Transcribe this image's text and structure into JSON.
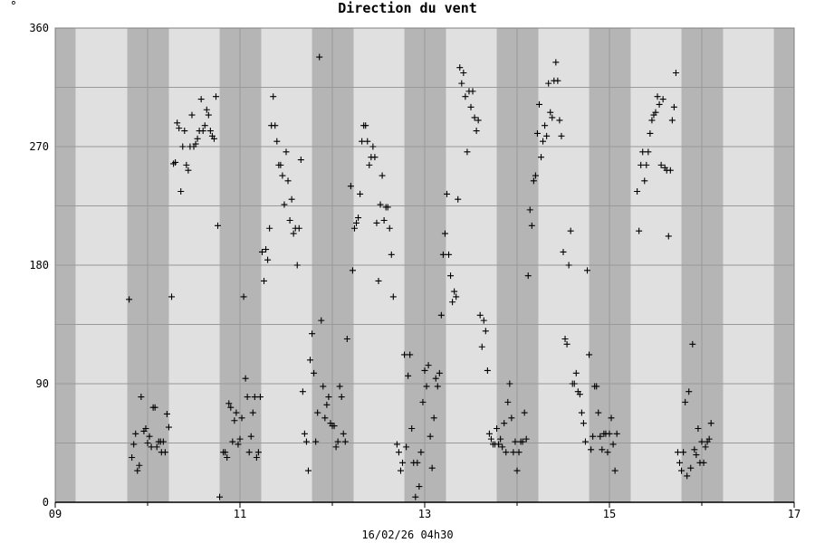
{
  "header": {
    "corner_mark": "°"
  },
  "chart_data": {
    "type": "scatter",
    "title": "Direction du vent",
    "footer": "16/02/26 04h30",
    "marker": "+",
    "xlabel": "",
    "ylabel": "",
    "xlim": [
      9.0,
      17.0
    ],
    "ylim": [
      0,
      360
    ],
    "x_ticks": [
      9,
      11,
      13,
      15,
      17
    ],
    "x_tick_labels": [
      "09",
      "11",
      "13",
      "15",
      "17"
    ],
    "x_minor_ticks": [
      10,
      12,
      14,
      16
    ],
    "y_ticks": [
      0,
      90,
      180,
      270,
      360
    ],
    "y_tick_labels": [
      "0",
      "90",
      "180",
      "270",
      "360"
    ],
    "y_gridlines": [
      0,
      45,
      90,
      135,
      180,
      225,
      270,
      315,
      360
    ],
    "grid": true,
    "colors": {
      "background": "#e0e0e0",
      "night_band": "#b5b5b5",
      "grid": "#999999",
      "marker": "#000000"
    },
    "night_bands": [
      [
        9.0,
        9.22
      ],
      [
        9.78,
        10.23
      ],
      [
        10.78,
        11.23
      ],
      [
        11.78,
        12.23
      ],
      [
        12.78,
        13.23
      ],
      [
        13.78,
        14.23
      ],
      [
        14.78,
        15.23
      ],
      [
        15.78,
        16.23
      ],
      [
        16.78,
        17.0
      ]
    ],
    "points": [
      [
        9.8,
        154
      ],
      [
        9.83,
        34
      ],
      [
        9.85,
        44
      ],
      [
        9.87,
        52
      ],
      [
        9.89,
        24
      ],
      [
        9.91,
        28
      ],
      [
        9.93,
        80
      ],
      [
        9.96,
        54
      ],
      [
        9.98,
        56
      ],
      [
        10.0,
        45
      ],
      [
        10.02,
        50
      ],
      [
        10.04,
        42
      ],
      [
        10.06,
        72
      ],
      [
        10.08,
        72
      ],
      [
        10.1,
        42
      ],
      [
        10.12,
        46
      ],
      [
        10.14,
        46
      ],
      [
        10.15,
        38
      ],
      [
        10.17,
        46
      ],
      [
        10.19,
        38
      ],
      [
        10.21,
        67
      ],
      [
        10.23,
        57
      ],
      [
        10.26,
        156
      ],
      [
        10.28,
        257
      ],
      [
        10.3,
        258
      ],
      [
        10.32,
        288
      ],
      [
        10.34,
        284
      ],
      [
        10.36,
        236
      ],
      [
        10.38,
        270
      ],
      [
        10.4,
        282
      ],
      [
        10.42,
        256
      ],
      [
        10.44,
        252
      ],
      [
        10.46,
        270
      ],
      [
        10.48,
        294
      ],
      [
        10.5,
        270
      ],
      [
        10.52,
        272
      ],
      [
        10.54,
        276
      ],
      [
        10.56,
        282
      ],
      [
        10.58,
        306
      ],
      [
        10.6,
        282
      ],
      [
        10.62,
        286
      ],
      [
        10.64,
        298
      ],
      [
        10.66,
        294
      ],
      [
        10.68,
        282
      ],
      [
        10.7,
        278
      ],
      [
        10.72,
        276
      ],
      [
        10.74,
        308
      ],
      [
        10.76,
        210
      ],
      [
        10.78,
        4
      ],
      [
        10.82,
        38
      ],
      [
        10.84,
        38
      ],
      [
        10.86,
        34
      ],
      [
        10.88,
        75
      ],
      [
        10.9,
        72
      ],
      [
        10.92,
        46
      ],
      [
        10.94,
        62
      ],
      [
        10.96,
        68
      ],
      [
        10.98,
        44
      ],
      [
        11.0,
        48
      ],
      [
        11.02,
        64
      ],
      [
        11.04,
        156
      ],
      [
        11.06,
        94
      ],
      [
        11.08,
        80
      ],
      [
        11.1,
        38
      ],
      [
        11.12,
        50
      ],
      [
        11.14,
        68
      ],
      [
        11.16,
        80
      ],
      [
        11.18,
        34
      ],
      [
        11.2,
        38
      ],
      [
        11.22,
        80
      ],
      [
        11.24,
        190
      ],
      [
        11.26,
        168
      ],
      [
        11.28,
        192
      ],
      [
        11.3,
        184
      ],
      [
        11.32,
        208
      ],
      [
        11.34,
        286
      ],
      [
        11.36,
        308
      ],
      [
        11.38,
        286
      ],
      [
        11.4,
        274
      ],
      [
        11.42,
        256
      ],
      [
        11.44,
        256
      ],
      [
        11.46,
        248
      ],
      [
        11.48,
        226
      ],
      [
        11.5,
        266
      ],
      [
        11.52,
        244
      ],
      [
        11.54,
        214
      ],
      [
        11.56,
        230
      ],
      [
        11.58,
        204
      ],
      [
        11.6,
        208
      ],
      [
        11.62,
        180
      ],
      [
        11.64,
        208
      ],
      [
        11.66,
        260
      ],
      [
        11.68,
        84
      ],
      [
        11.7,
        52
      ],
      [
        11.72,
        46
      ],
      [
        11.74,
        24
      ],
      [
        11.76,
        108
      ],
      [
        11.78,
        128
      ],
      [
        11.8,
        98
      ],
      [
        11.82,
        46
      ],
      [
        11.84,
        68
      ],
      [
        11.86,
        338
      ],
      [
        11.88,
        138
      ],
      [
        11.9,
        88
      ],
      [
        11.92,
        64
      ],
      [
        11.94,
        74
      ],
      [
        11.96,
        80
      ],
      [
        11.98,
        60
      ],
      [
        12.0,
        58
      ],
      [
        12.02,
        58
      ],
      [
        12.04,
        42
      ],
      [
        12.06,
        46
      ],
      [
        12.08,
        88
      ],
      [
        12.1,
        80
      ],
      [
        12.12,
        52
      ],
      [
        12.14,
        46
      ],
      [
        12.16,
        124
      ],
      [
        12.2,
        240
      ],
      [
        12.22,
        176
      ],
      [
        12.24,
        208
      ],
      [
        12.26,
        212
      ],
      [
        12.28,
        216
      ],
      [
        12.3,
        234
      ],
      [
        12.32,
        274
      ],
      [
        12.34,
        286
      ],
      [
        12.36,
        286
      ],
      [
        12.38,
        274
      ],
      [
        12.4,
        256
      ],
      [
        12.42,
        262
      ],
      [
        12.44,
        270
      ],
      [
        12.46,
        262
      ],
      [
        12.48,
        212
      ],
      [
        12.5,
        168
      ],
      [
        12.52,
        226
      ],
      [
        12.54,
        248
      ],
      [
        12.56,
        214
      ],
      [
        12.58,
        224
      ],
      [
        12.6,
        224
      ],
      [
        12.62,
        208
      ],
      [
        12.64,
        188
      ],
      [
        12.66,
        156
      ],
      [
        12.7,
        44
      ],
      [
        12.72,
        38
      ],
      [
        12.74,
        24
      ],
      [
        12.76,
        30
      ],
      [
        12.78,
        112
      ],
      [
        12.8,
        42
      ],
      [
        12.82,
        96
      ],
      [
        12.84,
        112
      ],
      [
        12.86,
        56
      ],
      [
        12.88,
        30
      ],
      [
        12.9,
        4
      ],
      [
        12.92,
        30
      ],
      [
        12.94,
        12
      ],
      [
        12.96,
        38
      ],
      [
        12.98,
        76
      ],
      [
        13.0,
        100
      ],
      [
        13.02,
        88
      ],
      [
        13.04,
        104
      ],
      [
        13.06,
        50
      ],
      [
        13.08,
        26
      ],
      [
        13.1,
        64
      ],
      [
        13.12,
        94
      ],
      [
        13.14,
        88
      ],
      [
        13.16,
        98
      ],
      [
        13.18,
        142
      ],
      [
        13.2,
        188
      ],
      [
        13.22,
        204
      ],
      [
        13.24,
        234
      ],
      [
        13.26,
        188
      ],
      [
        13.28,
        172
      ],
      [
        13.3,
        152
      ],
      [
        13.32,
        160
      ],
      [
        13.34,
        156
      ],
      [
        13.36,
        230
      ],
      [
        13.38,
        330
      ],
      [
        13.4,
        318
      ],
      [
        13.42,
        326
      ],
      [
        13.44,
        308
      ],
      [
        13.46,
        266
      ],
      [
        13.48,
        312
      ],
      [
        13.5,
        300
      ],
      [
        13.52,
        312
      ],
      [
        13.54,
        292
      ],
      [
        13.56,
        282
      ],
      [
        13.58,
        290
      ],
      [
        13.6,
        142
      ],
      [
        13.62,
        118
      ],
      [
        13.64,
        138
      ],
      [
        13.66,
        130
      ],
      [
        13.68,
        100
      ],
      [
        13.7,
        52
      ],
      [
        13.72,
        48
      ],
      [
        13.74,
        44
      ],
      [
        13.76,
        44
      ],
      [
        13.78,
        56
      ],
      [
        13.8,
        44
      ],
      [
        13.82,
        48
      ],
      [
        13.84,
        42
      ],
      [
        13.86,
        60
      ],
      [
        13.88,
        38
      ],
      [
        13.9,
        76
      ],
      [
        13.92,
        90
      ],
      [
        13.94,
        64
      ],
      [
        13.96,
        38
      ],
      [
        13.98,
        46
      ],
      [
        14.0,
        24
      ],
      [
        14.02,
        38
      ],
      [
        14.04,
        46
      ],
      [
        14.06,
        46
      ],
      [
        14.08,
        68
      ],
      [
        14.1,
        48
      ],
      [
        14.12,
        172
      ],
      [
        14.14,
        222
      ],
      [
        14.16,
        210
      ],
      [
        14.18,
        244
      ],
      [
        14.2,
        248
      ],
      [
        14.22,
        280
      ],
      [
        14.24,
        302
      ],
      [
        14.26,
        262
      ],
      [
        14.28,
        274
      ],
      [
        14.3,
        286
      ],
      [
        14.32,
        278
      ],
      [
        14.34,
        318
      ],
      [
        14.36,
        296
      ],
      [
        14.38,
        292
      ],
      [
        14.4,
        320
      ],
      [
        14.42,
        334
      ],
      [
        14.44,
        320
      ],
      [
        14.46,
        290
      ],
      [
        14.48,
        278
      ],
      [
        14.5,
        190
      ],
      [
        14.52,
        124
      ],
      [
        14.54,
        120
      ],
      [
        14.56,
        180
      ],
      [
        14.58,
        206
      ],
      [
        14.6,
        90
      ],
      [
        14.62,
        90
      ],
      [
        14.64,
        98
      ],
      [
        14.66,
        84
      ],
      [
        14.68,
        82
      ],
      [
        14.7,
        68
      ],
      [
        14.72,
        60
      ],
      [
        14.74,
        46
      ],
      [
        14.76,
        176
      ],
      [
        14.78,
        112
      ],
      [
        14.8,
        40
      ],
      [
        14.82,
        50
      ],
      [
        14.84,
        88
      ],
      [
        14.86,
        88
      ],
      [
        14.88,
        68
      ],
      [
        14.9,
        50
      ],
      [
        14.92,
        40
      ],
      [
        14.94,
        52
      ],
      [
        14.96,
        52
      ],
      [
        14.98,
        38
      ],
      [
        15.0,
        52
      ],
      [
        15.02,
        64
      ],
      [
        15.04,
        44
      ],
      [
        15.06,
        24
      ],
      [
        15.08,
        52
      ],
      [
        15.3,
        236
      ],
      [
        15.32,
        206
      ],
      [
        15.34,
        256
      ],
      [
        15.36,
        266
      ],
      [
        15.38,
        244
      ],
      [
        15.4,
        256
      ],
      [
        15.42,
        266
      ],
      [
        15.44,
        280
      ],
      [
        15.46,
        290
      ],
      [
        15.48,
        294
      ],
      [
        15.5,
        296
      ],
      [
        15.52,
        308
      ],
      [
        15.54,
        302
      ],
      [
        15.56,
        256
      ],
      [
        15.58,
        306
      ],
      [
        15.6,
        254
      ],
      [
        15.62,
        252
      ],
      [
        15.64,
        202
      ],
      [
        15.66,
        252
      ],
      [
        15.68,
        290
      ],
      [
        15.7,
        300
      ],
      [
        15.72,
        326
      ],
      [
        15.74,
        38
      ],
      [
        15.76,
        30
      ],
      [
        15.78,
        24
      ],
      [
        15.8,
        38
      ],
      [
        15.82,
        76
      ],
      [
        15.84,
        20
      ],
      [
        15.86,
        84
      ],
      [
        15.88,
        26
      ],
      [
        15.9,
        120
      ],
      [
        15.92,
        40
      ],
      [
        15.94,
        36
      ],
      [
        15.96,
        56
      ],
      [
        15.98,
        30
      ],
      [
        16.0,
        46
      ],
      [
        16.02,
        30
      ],
      [
        16.04,
        42
      ],
      [
        16.06,
        46
      ],
      [
        16.08,
        48
      ],
      [
        16.1,
        60
      ]
    ]
  }
}
